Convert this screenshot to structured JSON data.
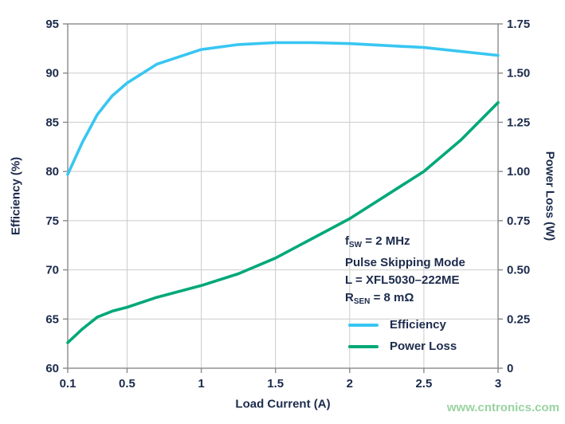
{
  "chart_data": {
    "type": "line",
    "title": "",
    "x_label": "Load Current (A)",
    "x_range": [
      0.1,
      3
    ],
    "x_ticks": [
      0.1,
      0.5,
      1,
      1.5,
      2,
      2.5,
      3
    ],
    "x_tick_labels": [
      "0.1",
      "0.5",
      "1",
      "1.5",
      "2",
      "2.5",
      "3"
    ],
    "left_axis": {
      "label": "Efficiency (%)",
      "range": [
        60,
        95
      ],
      "ticks": [
        60,
        65,
        70,
        75,
        80,
        85,
        90,
        95
      ],
      "tick_labels": [
        "60",
        "65",
        "70",
        "75",
        "80",
        "85",
        "90",
        "95"
      ]
    },
    "right_axis": {
      "label": "Power Loss (W)",
      "range": [
        0,
        1.75
      ],
      "ticks": [
        0,
        0.25,
        0.5,
        0.75,
        1,
        1.25,
        1.5,
        1.75
      ],
      "tick_labels": [
        "0",
        "0.25",
        "0.50",
        "0.75",
        "1.00",
        "1.25",
        "1.50",
        "1.75"
      ]
    },
    "grid": true,
    "legend_position": "inside-bottom-right",
    "series": [
      {
        "name": "Efficiency",
        "axis": "left",
        "color": "#38c6f2",
        "x": [
          0.1,
          0.2,
          0.3,
          0.4,
          0.5,
          0.7,
          1.0,
          1.25,
          1.5,
          1.75,
          2.0,
          2.5,
          3.0
        ],
        "y": [
          79.7,
          83.0,
          85.8,
          87.7,
          89.0,
          90.9,
          92.4,
          92.9,
          93.1,
          93.1,
          93.0,
          92.6,
          91.8
        ]
      },
      {
        "name": "Power Loss",
        "axis": "right",
        "color": "#00a878",
        "x": [
          0.1,
          0.2,
          0.3,
          0.4,
          0.5,
          0.7,
          1.0,
          1.25,
          1.5,
          1.75,
          2.0,
          2.25,
          2.5,
          2.75,
          3.0
        ],
        "y": [
          0.13,
          0.2,
          0.26,
          0.29,
          0.31,
          0.36,
          0.42,
          0.48,
          0.56,
          0.66,
          0.76,
          0.88,
          1.0,
          1.16,
          1.35
        ]
      }
    ],
    "annotation_lines_text": [
      "fSW = 2 MHz",
      "Pulse Skipping Mode",
      "L = XFL5030–222ME",
      "RSEN = 8 mΩ"
    ]
  },
  "annotation": {
    "lines": [
      [
        {
          "t": "f"
        },
        {
          "t": "SW",
          "sub": true
        },
        {
          "t": " = 2 MHz"
        }
      ],
      [
        {
          "t": "Pulse Skipping Mode"
        }
      ],
      [
        {
          "t": "L = XFL5030–222ME"
        }
      ],
      [
        {
          "t": "R"
        },
        {
          "t": "SEN",
          "sub": true
        },
        {
          "t": " = 8 mΩ"
        }
      ]
    ]
  },
  "watermark": "www.cntronics.com",
  "colors": {
    "text": "#1c2b4c",
    "efficiency_line": "#38c6f2",
    "power_loss_line": "#00a878",
    "gridline": "#cbcbcb",
    "frame": "#8a8a8a",
    "watermark": "#98d3a0"
  }
}
